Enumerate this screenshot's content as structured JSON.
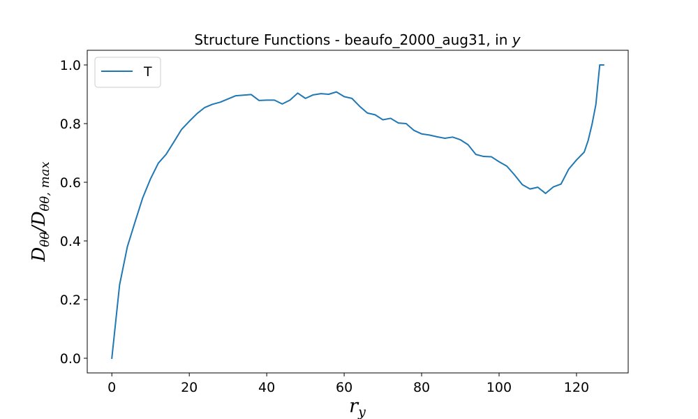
{
  "chart_data": {
    "type": "line",
    "title": "Structure Functions - beaufo_2000_aug31, in ",
    "title_var": "y",
    "xlabel": {
      "base": "r",
      "sub": "y"
    },
    "ylabel": {
      "base": "D",
      "sub1": "θθ",
      "mid": "/D",
      "sub2": "θθ, max"
    },
    "xlim": [
      -6.35,
      133.35
    ],
    "ylim": [
      -0.05,
      1.05
    ],
    "xticks": [
      0,
      20,
      40,
      60,
      80,
      100,
      120
    ],
    "yticks": [
      0.0,
      0.2,
      0.4,
      0.6,
      0.8,
      1.0
    ],
    "ytick_labels": [
      "0.0",
      "0.2",
      "0.4",
      "0.6",
      "0.8",
      "1.0"
    ],
    "grid": false,
    "legend_position": "top-left",
    "series": [
      {
        "name": "T",
        "color": "#1f77b4",
        "x": [
          0,
          2,
          4,
          6,
          8,
          10,
          12,
          14,
          16,
          18,
          20,
          22,
          24,
          26,
          28,
          30,
          32,
          34,
          36,
          38,
          40,
          42,
          44,
          46,
          48,
          50,
          52,
          54,
          56,
          58,
          60,
          62,
          64,
          66,
          68,
          70,
          72,
          74,
          76,
          78,
          80,
          82,
          84,
          86,
          88,
          90,
          92,
          94,
          96,
          98,
          100,
          102,
          104,
          106,
          108,
          110,
          112,
          114,
          116,
          118,
          120,
          122,
          123,
          124,
          125,
          126,
          127
        ],
        "values": [
          0.0,
          0.25,
          0.38,
          0.465,
          0.548,
          0.612,
          0.665,
          0.695,
          0.737,
          0.78,
          0.808,
          0.834,
          0.855,
          0.866,
          0.873,
          0.884,
          0.895,
          0.897,
          0.899,
          0.879,
          0.88,
          0.88,
          0.867,
          0.88,
          0.904,
          0.886,
          0.898,
          0.902,
          0.9,
          0.908,
          0.892,
          0.886,
          0.859,
          0.836,
          0.83,
          0.813,
          0.818,
          0.802,
          0.8,
          0.777,
          0.765,
          0.761,
          0.755,
          0.75,
          0.754,
          0.745,
          0.728,
          0.695,
          0.688,
          0.687,
          0.67,
          0.655,
          0.625,
          0.592,
          0.577,
          0.583,
          0.562,
          0.584,
          0.594,
          0.645,
          0.676,
          0.703,
          0.742,
          0.797,
          0.865,
          1.0,
          1.0
        ]
      }
    ]
  }
}
